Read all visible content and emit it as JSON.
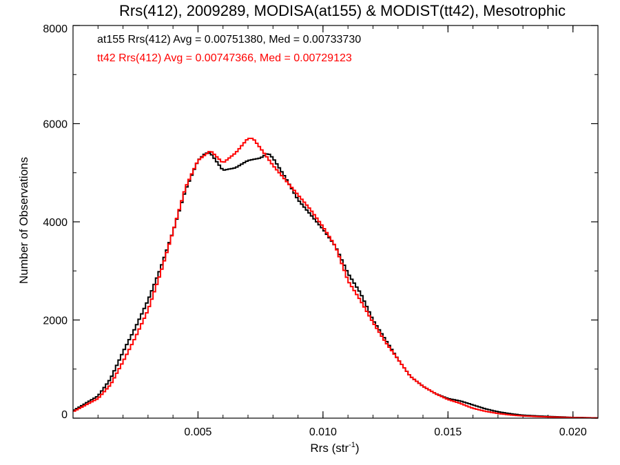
{
  "chart_data": {
    "type": "line",
    "title": "Rrs(412), 2009289, MODISA(at155) & MODIST(tt42), Mesotrophic",
    "xlabel": "Rrs (str",
    "xlabel_sup": "-1",
    "xlabel_close": ")",
    "ylabel": "Number of Observations",
    "xlim": [
      0.0,
      0.021
    ],
    "ylim": [
      0,
      8000
    ],
    "x_ticks": [
      {
        "value": 0.005,
        "label": "0.005"
      },
      {
        "value": 0.01,
        "label": "0.010"
      },
      {
        "value": 0.015,
        "label": "0.015"
      },
      {
        "value": 0.02,
        "label": "0.020"
      }
    ],
    "y_ticks": [
      {
        "value": 0,
        "label": "0"
      },
      {
        "value": 2000,
        "label": "2000"
      },
      {
        "value": 4000,
        "label": "4000"
      },
      {
        "value": 6000,
        "label": "6000"
      },
      {
        "value": 8000,
        "label": "8000"
      }
    ],
    "x_minor_step": 0.001,
    "y_minor_step": 1000,
    "grid": false,
    "legend": "top-left",
    "annotations": [
      {
        "text": "at155 Rrs(412) Avg = 0.00751380, Med = 0.00733730",
        "color": "#000000"
      },
      {
        "text": "tt42 Rrs(412) Avg = 0.00747366, Med = 0.00729123",
        "color": "#ff0000"
      }
    ],
    "series": [
      {
        "name": "at155",
        "color": "#000000",
        "style": "step",
        "x": [
          0.0,
          0.001,
          0.0015,
          0.002,
          0.0025,
          0.003,
          0.0035,
          0.004,
          0.0045,
          0.005,
          0.0053,
          0.0055,
          0.006,
          0.0065,
          0.007,
          0.0075,
          0.0078,
          0.008,
          0.0085,
          0.009,
          0.0095,
          0.01,
          0.0105,
          0.011,
          0.0115,
          0.012,
          0.0125,
          0.013,
          0.0135,
          0.014,
          0.0145,
          0.015,
          0.0155,
          0.016,
          0.0165,
          0.017,
          0.0175,
          0.018,
          0.019,
          0.02,
          0.021
        ],
        "y": [
          150,
          450,
          800,
          1350,
          1850,
          2400,
          3050,
          3800,
          4650,
          5250,
          5400,
          5400,
          5050,
          5100,
          5250,
          5300,
          5400,
          5300,
          4900,
          4450,
          4150,
          3850,
          3500,
          2950,
          2550,
          2000,
          1600,
          1200,
          850,
          650,
          500,
          400,
          350,
          270,
          190,
          130,
          90,
          60,
          35,
          15,
          5
        ]
      },
      {
        "name": "tt42",
        "color": "#ff0000",
        "style": "step",
        "x": [
          0.0,
          0.001,
          0.0015,
          0.002,
          0.0025,
          0.003,
          0.0035,
          0.004,
          0.0045,
          0.005,
          0.0055,
          0.006,
          0.0065,
          0.007,
          0.0072,
          0.0075,
          0.008,
          0.0085,
          0.009,
          0.0095,
          0.01,
          0.0105,
          0.011,
          0.0115,
          0.012,
          0.0125,
          0.013,
          0.0135,
          0.014,
          0.0145,
          0.015,
          0.0155,
          0.016,
          0.0165,
          0.017,
          0.0175,
          0.018,
          0.019,
          0.02,
          0.021
        ],
        "y": [
          130,
          400,
          680,
          1150,
          1650,
          2200,
          2950,
          3800,
          4700,
          5250,
          5450,
          5200,
          5400,
          5700,
          5700,
          5500,
          5150,
          4850,
          4550,
          4250,
          3900,
          3500,
          2800,
          2400,
          1950,
          1550,
          1200,
          850,
          650,
          500,
          380,
          300,
          200,
          140,
          95,
          65,
          45,
          25,
          12,
          5
        ]
      }
    ]
  }
}
